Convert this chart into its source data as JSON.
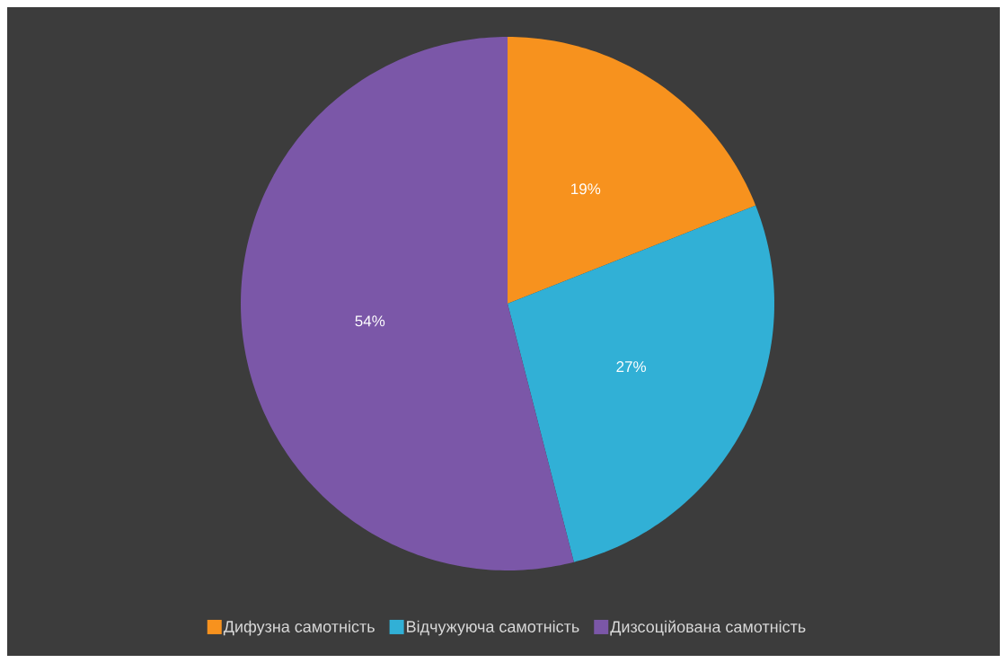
{
  "chart_data": {
    "type": "pie",
    "categories": [
      "Дифузна самотність",
      "Відчужуюча самотність",
      "Дизсоційована самотність"
    ],
    "values": [
      19,
      27,
      54
    ],
    "colors": [
      "#f7921e",
      "#31b0d6",
      "#7b57a8"
    ],
    "value_labels": [
      "19%",
      "27%",
      "54%"
    ],
    "legend": "bottom"
  }
}
